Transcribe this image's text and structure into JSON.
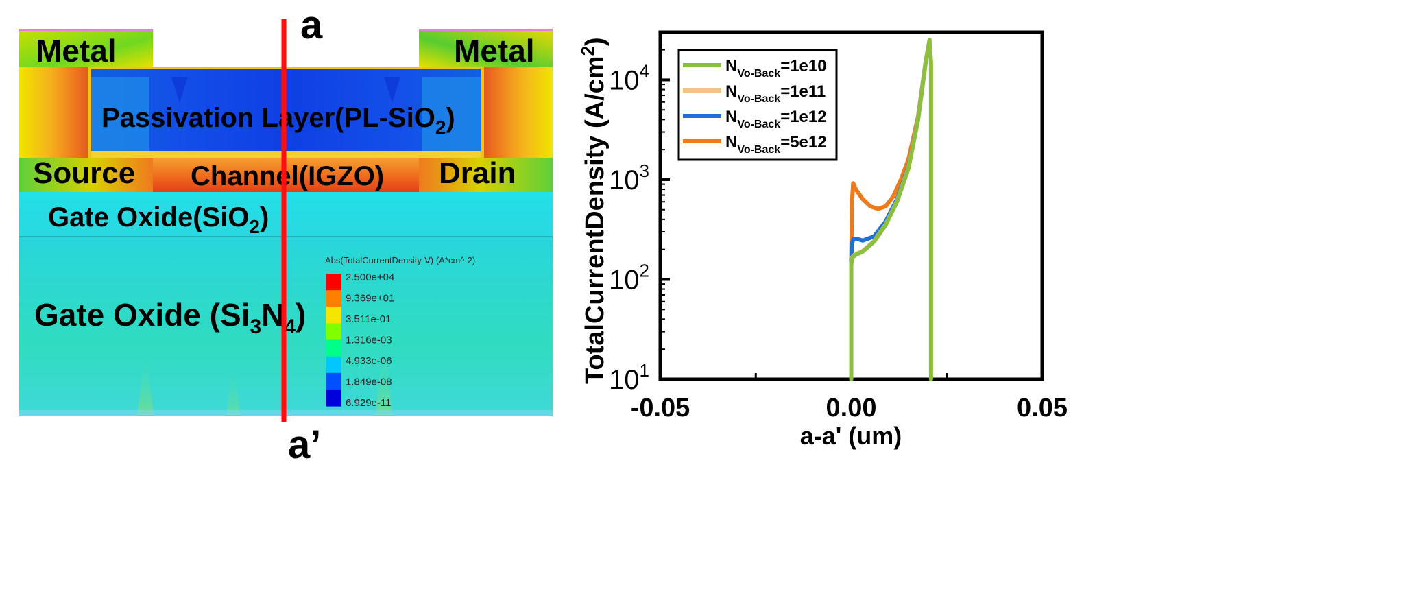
{
  "device": {
    "cut_top_label": "a",
    "cut_bottom_label": "a’",
    "regions": {
      "metal_left": "Metal",
      "metal_right": "Metal",
      "passivation": {
        "text": "Passivation Layer(PL-SiO",
        "sub": "2",
        "suffix": ")"
      },
      "source": "Source",
      "channel": "Channel(IGZO)",
      "drain": "Drain",
      "gate_oxide_sio2": {
        "text": "Gate Oxide(SiO",
        "sub": "2",
        "suffix": ")"
      },
      "gate_oxide_si3n4": {
        "prefix": "Gate Oxide (Si",
        "sub1": "3",
        "mid": "N",
        "sub2": "4",
        "suffix": ")"
      }
    },
    "colorbar": {
      "title": "Abs(TotalCurrentDensity-V) (A*cm^-2)",
      "ticks": [
        "2.500e+04",
        "9.369e+01",
        "3.511e-01",
        "1.316e-03",
        "4.933e-06",
        "1.849e-08",
        "6.929e-11"
      ],
      "colors": [
        "#ff0000",
        "#ff7f00",
        "#f5e600",
        "#7fff00",
        "#00ff88",
        "#00c8ff",
        "#0050ff",
        "#0000dd"
      ]
    }
  },
  "chart_data": {
    "type": "line",
    "xlabel": "a-a' (um)",
    "ylabel": "TotalCurrentDensity (A/cm",
    "ylabel_sup": "2",
    "ylabel_suffix": ")",
    "xlim": [
      -0.05,
      0.05
    ],
    "ylim": [
      10,
      30000
    ],
    "yscale": "log",
    "x_ticks": [
      -0.05,
      0.0,
      0.05
    ],
    "x_tick_labels": [
      "-0.05",
      "0.00",
      "0.05"
    ],
    "y_ticks": [
      10,
      100,
      1000,
      10000
    ],
    "y_tick_labels": [
      {
        "base": "10",
        "exp": "1"
      },
      {
        "base": "10",
        "exp": "2"
      },
      {
        "base": "10",
        "exp": "3"
      },
      {
        "base": "10",
        "exp": "4"
      }
    ],
    "legend_position": "top-left",
    "legend_sub": "Vo-Back",
    "series": [
      {
        "name": "N_Vo-Back=1e10",
        "label_prefix": "N",
        "label_value": "=1e10",
        "color": "#8cbf3f",
        "x": [
          0.0,
          0.0,
          0.0003,
          0.001,
          0.003,
          0.006,
          0.009,
          0.012,
          0.015,
          0.0175,
          0.0195,
          0.0205,
          0.0209,
          0.0209
        ],
        "y": [
          10,
          140,
          165,
          175,
          190,
          240,
          350,
          600,
          1300,
          4000,
          15000,
          25000,
          15000,
          10
        ]
      },
      {
        "name": "N_Vo-Back=1e11",
        "label_prefix": "N",
        "label_value": "=1e11",
        "color": "#f4c08c",
        "x": [
          0.0,
          0.0,
          0.0003,
          0.001,
          0.003,
          0.006,
          0.009,
          0.012,
          0.015,
          0.0175,
          0.0195,
          0.0205
        ],
        "y": [
          30,
          145,
          168,
          178,
          193,
          243,
          355,
          610,
          1320,
          4050,
          15100,
          25000
        ]
      },
      {
        "name": "N_Vo-Back=1e12",
        "label_prefix": "N",
        "label_value": "=1e12",
        "color": "#1f6fd6",
        "x": [
          0.0,
          0.0,
          0.0002,
          0.0006,
          0.0015,
          0.003,
          0.006,
          0.009,
          0.012,
          0.015,
          0.0175,
          0.0195,
          0.0205
        ],
        "y": [
          30,
          150,
          230,
          255,
          255,
          245,
          270,
          380,
          640,
          1350,
          4100,
          15200,
          25000
        ]
      },
      {
        "name": "N_Vo-Back=5e12",
        "label_prefix": "N",
        "label_value": "=5e12",
        "color": "#ef7a1a",
        "x": [
          0.0,
          0.0,
          0.0002,
          0.0005,
          0.0012,
          0.003,
          0.005,
          0.007,
          0.009,
          0.011,
          0.013,
          0.015,
          0.0175,
          0.0195,
          0.0205
        ],
        "y": [
          60,
          160,
          600,
          920,
          800,
          640,
          540,
          510,
          540,
          680,
          1000,
          1600,
          4300,
          15300,
          25000
        ]
      }
    ]
  }
}
